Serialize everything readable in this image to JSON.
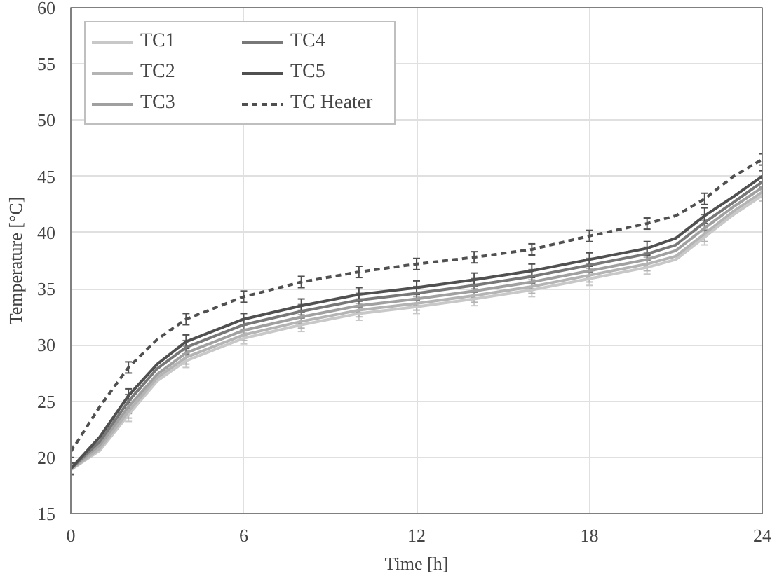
{
  "chart_data": {
    "type": "line",
    "xlabel": "Time [h]",
    "ylabel": "Temperature [°C]",
    "x": [
      0,
      1,
      2,
      3,
      4,
      6,
      8,
      10,
      12,
      14,
      16,
      18,
      20,
      21,
      22,
      23,
      24
    ],
    "xlim": [
      0,
      24
    ],
    "xticks": [
      0,
      6,
      12,
      18,
      24
    ],
    "ylim": [
      15,
      60
    ],
    "yticks": [
      15,
      20,
      25,
      30,
      35,
      40,
      45,
      50,
      55,
      60
    ],
    "grid": true,
    "legend": "top left",
    "marker": "none",
    "series": [
      {
        "name": "TC1",
        "color": "#c8c8c8",
        "values": [
          18.9,
          20.6,
          23.8,
          26.8,
          28.6,
          30.6,
          31.8,
          32.8,
          33.4,
          34.1,
          34.9,
          35.9,
          36.9,
          37.6,
          39.6,
          41.6,
          43.3
        ],
        "errors": [
          0.5,
          null,
          0.6,
          null,
          0.6,
          0.5,
          0.6,
          0.6,
          0.6,
          0.6,
          0.6,
          0.6,
          0.6,
          null,
          0.7,
          null,
          0.5
        ]
      },
      {
        "name": "TC2",
        "color": "#b4b4b4",
        "values": [
          18.9,
          20.8,
          24.1,
          27.1,
          28.9,
          30.9,
          32.1,
          33.1,
          33.7,
          34.4,
          35.2,
          36.2,
          37.2,
          37.9,
          39.9,
          41.9,
          43.6
        ],
        "errors": [
          0.5,
          null,
          0.6,
          null,
          0.6,
          0.5,
          0.6,
          0.6,
          0.6,
          0.6,
          0.6,
          0.6,
          0.6,
          null,
          0.7,
          null,
          0.5
        ]
      },
      {
        "name": "TC3",
        "color": "#a0a0a0",
        "values": [
          19.0,
          21.1,
          24.5,
          27.4,
          29.3,
          31.3,
          32.5,
          33.5,
          34.1,
          34.8,
          35.6,
          36.6,
          37.6,
          38.4,
          40.4,
          42.3,
          44.0
        ],
        "errors": [
          0.5,
          null,
          0.6,
          null,
          0.6,
          0.5,
          0.6,
          0.6,
          0.6,
          0.6,
          0.6,
          0.6,
          0.6,
          null,
          0.7,
          null,
          0.5
        ]
      },
      {
        "name": "TC4",
        "color": "#787878",
        "values": [
          19.0,
          21.4,
          25.0,
          27.9,
          29.8,
          31.8,
          33.0,
          34.0,
          34.6,
          35.3,
          36.1,
          37.1,
          38.1,
          38.9,
          40.9,
          42.7,
          44.5
        ],
        "errors": [
          0.5,
          null,
          0.6,
          null,
          0.6,
          0.5,
          0.6,
          0.6,
          0.6,
          0.6,
          0.6,
          0.6,
          0.6,
          null,
          0.7,
          null,
          0.5
        ]
      },
      {
        "name": "TC5",
        "color": "#505050",
        "values": [
          19.0,
          21.8,
          25.5,
          28.3,
          30.3,
          32.3,
          33.5,
          34.5,
          35.1,
          35.8,
          36.6,
          37.6,
          38.6,
          39.5,
          41.5,
          43.2,
          45.0
        ],
        "errors": [
          0.5,
          null,
          0.6,
          null,
          0.6,
          0.5,
          0.6,
          0.6,
          0.6,
          0.6,
          0.6,
          0.6,
          0.6,
          null,
          0.7,
          null,
          0.5
        ]
      },
      {
        "name": "TC Heater",
        "color": "#505050",
        "line_style": "dashed",
        "values": [
          20.5,
          24.5,
          28.0,
          30.5,
          32.3,
          34.3,
          35.6,
          36.5,
          37.2,
          37.8,
          38.5,
          39.7,
          40.8,
          41.5,
          43.0,
          45.0,
          46.5
        ],
        "errors": [
          0.5,
          null,
          0.5,
          null,
          0.5,
          0.5,
          0.5,
          0.5,
          0.5,
          0.5,
          0.5,
          0.5,
          0.5,
          null,
          0.5,
          null,
          0.5
        ]
      }
    ]
  }
}
